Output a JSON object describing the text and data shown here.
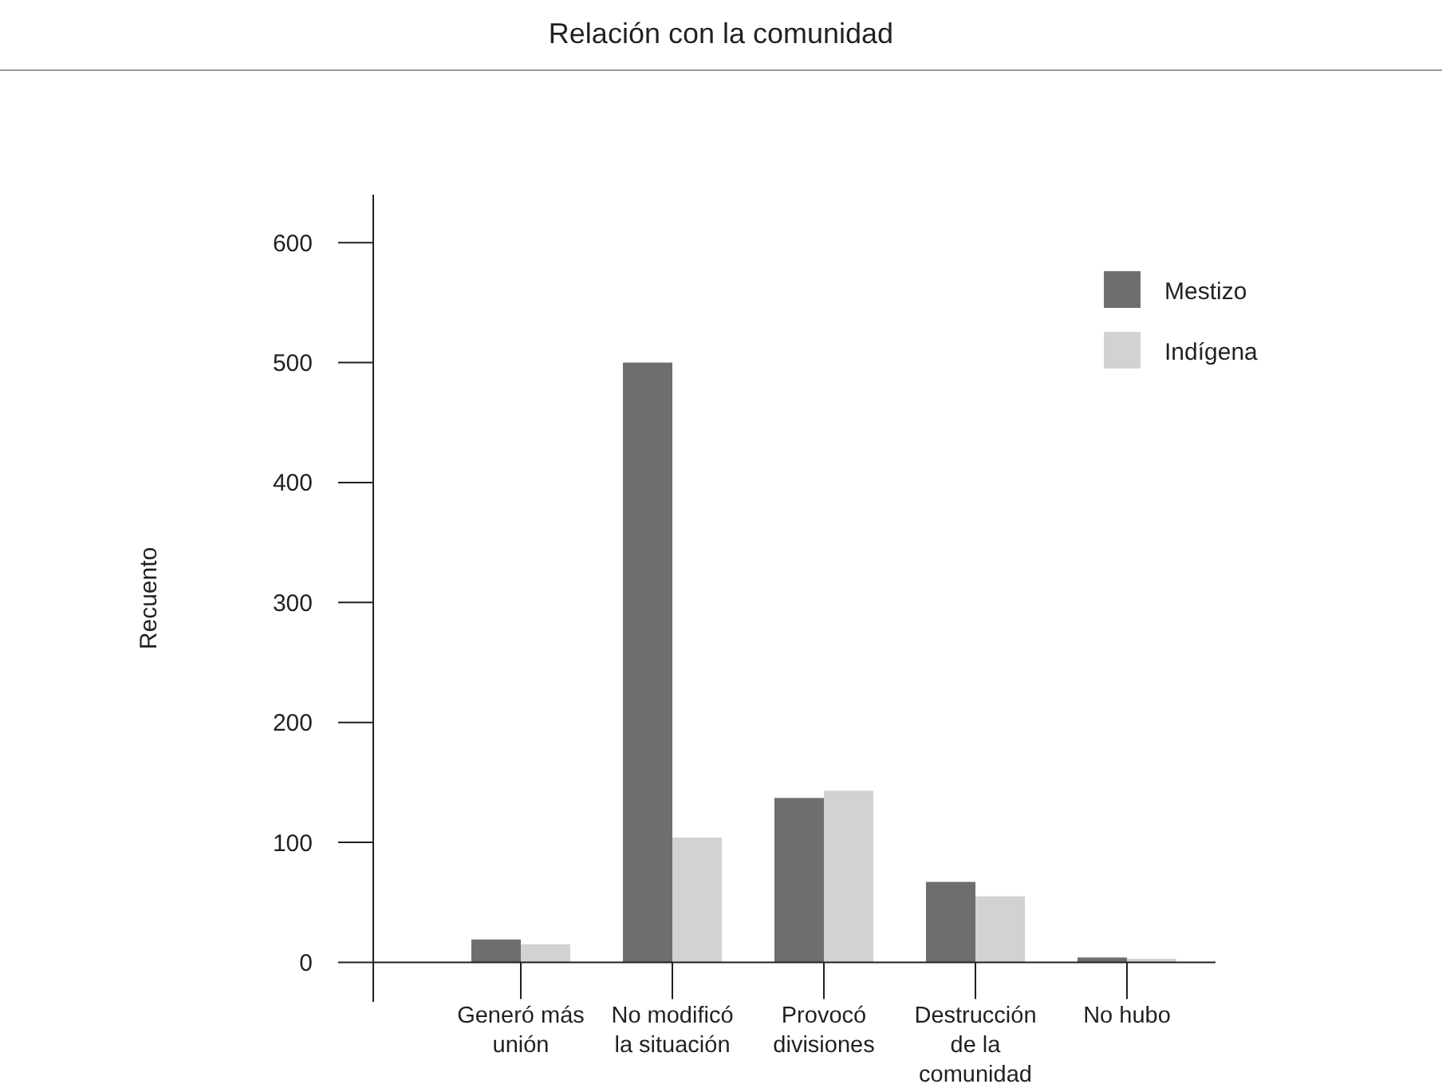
{
  "chart_data": {
    "type": "bar",
    "title": "Relación con la comunidad",
    "ylabel": "Recuento",
    "categories": [
      "Generó más unión",
      "No modificó la situación",
      "Provocó divisiones",
      "Destrucción de la comunidad",
      "No hubo"
    ],
    "series": [
      {
        "name": "Mestizo",
        "color": "#6d6e70",
        "values": [
          19,
          500,
          137,
          67,
          4
        ]
      },
      {
        "name": "Indígena",
        "color": "#d1d2d4",
        "values": [
          15,
          104,
          143,
          55,
          3
        ]
      }
    ],
    "ylim": [
      -33,
      640
    ],
    "yticks": [
      0,
      100,
      200,
      300,
      400,
      500,
      600
    ],
    "grid": false,
    "legend": "top right"
  }
}
